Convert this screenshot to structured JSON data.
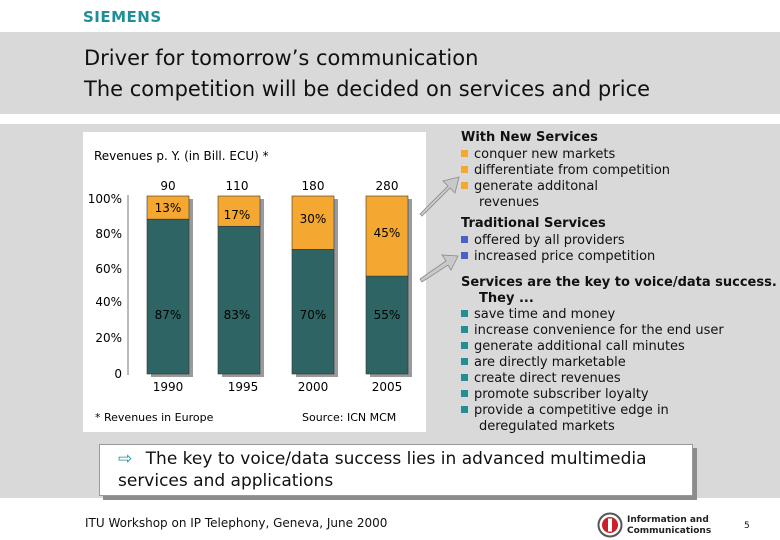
{
  "header": {
    "logo": "SIEMENS",
    "title_line1": "Driver for tomorrow’s communication",
    "title_line2": "The competition will be decided on services and price"
  },
  "chart_data": {
    "type": "bar",
    "title": "Revenues p. Y. (in Bill. ECU) *",
    "categories": [
      "1990",
      "1995",
      "2000",
      "2005"
    ],
    "totals": [
      "90",
      "110",
      "180",
      "280"
    ],
    "y_tick_labels": [
      "100%",
      "80%",
      "60%",
      "40%",
      "20%",
      "0"
    ],
    "ylim": [
      0,
      100
    ],
    "series": [
      {
        "name": "",
        "values": [
          87,
          83,
          70,
          55
        ],
        "labels": [
          "87%",
          "83%",
          "70%",
          "55%"
        ],
        "color": "#2e6464"
      },
      {
        "name": "",
        "values": [
          13,
          17,
          30,
          45
        ],
        "labels": [
          "13%",
          "17%",
          "30%",
          "45%"
        ],
        "color": "#f4a731"
      }
    ],
    "footnote": "* Revenues in Europe",
    "source": "Source: ICN MCM"
  },
  "right_panel": {
    "new_services": {
      "heading": "With New Services",
      "items": [
        "conquer new markets",
        "differentiate from competition",
        "generate additonal"
      ],
      "continuation": "revenues"
    },
    "traditional_services": {
      "heading": "Traditional Services",
      "items": [
        "offered by all providers",
        "increased price competition"
      ]
    },
    "key_services": {
      "heading_line1": "Services are the key to voice/data success.",
      "heading_line2": "They ...",
      "items": [
        "save time and money",
        "increase convenience for the end user",
        "generate additional call minutes",
        "are directly marketable",
        "create direct revenues",
        "promote subscriber loyalty",
        "provide a competitive edge in"
      ],
      "continuation": "deregulated markets"
    }
  },
  "bottom": {
    "arrow": "⇨",
    "line1": "The key to voice/data success lies in advanced multimedia",
    "line2": "services and applications"
  },
  "footer": {
    "text": "ITU Workshop on IP Telephony, Geneva, June 2000",
    "ic_logo_line1": "Information and",
    "ic_logo_line2": "Communications",
    "page_number": "5"
  },
  "colors": {
    "teal": "#2e6464",
    "orange": "#f4a731",
    "accent": "#1f8f97",
    "bullet_blue": "#4a62c8",
    "band_gray": "#d9d9d9"
  }
}
